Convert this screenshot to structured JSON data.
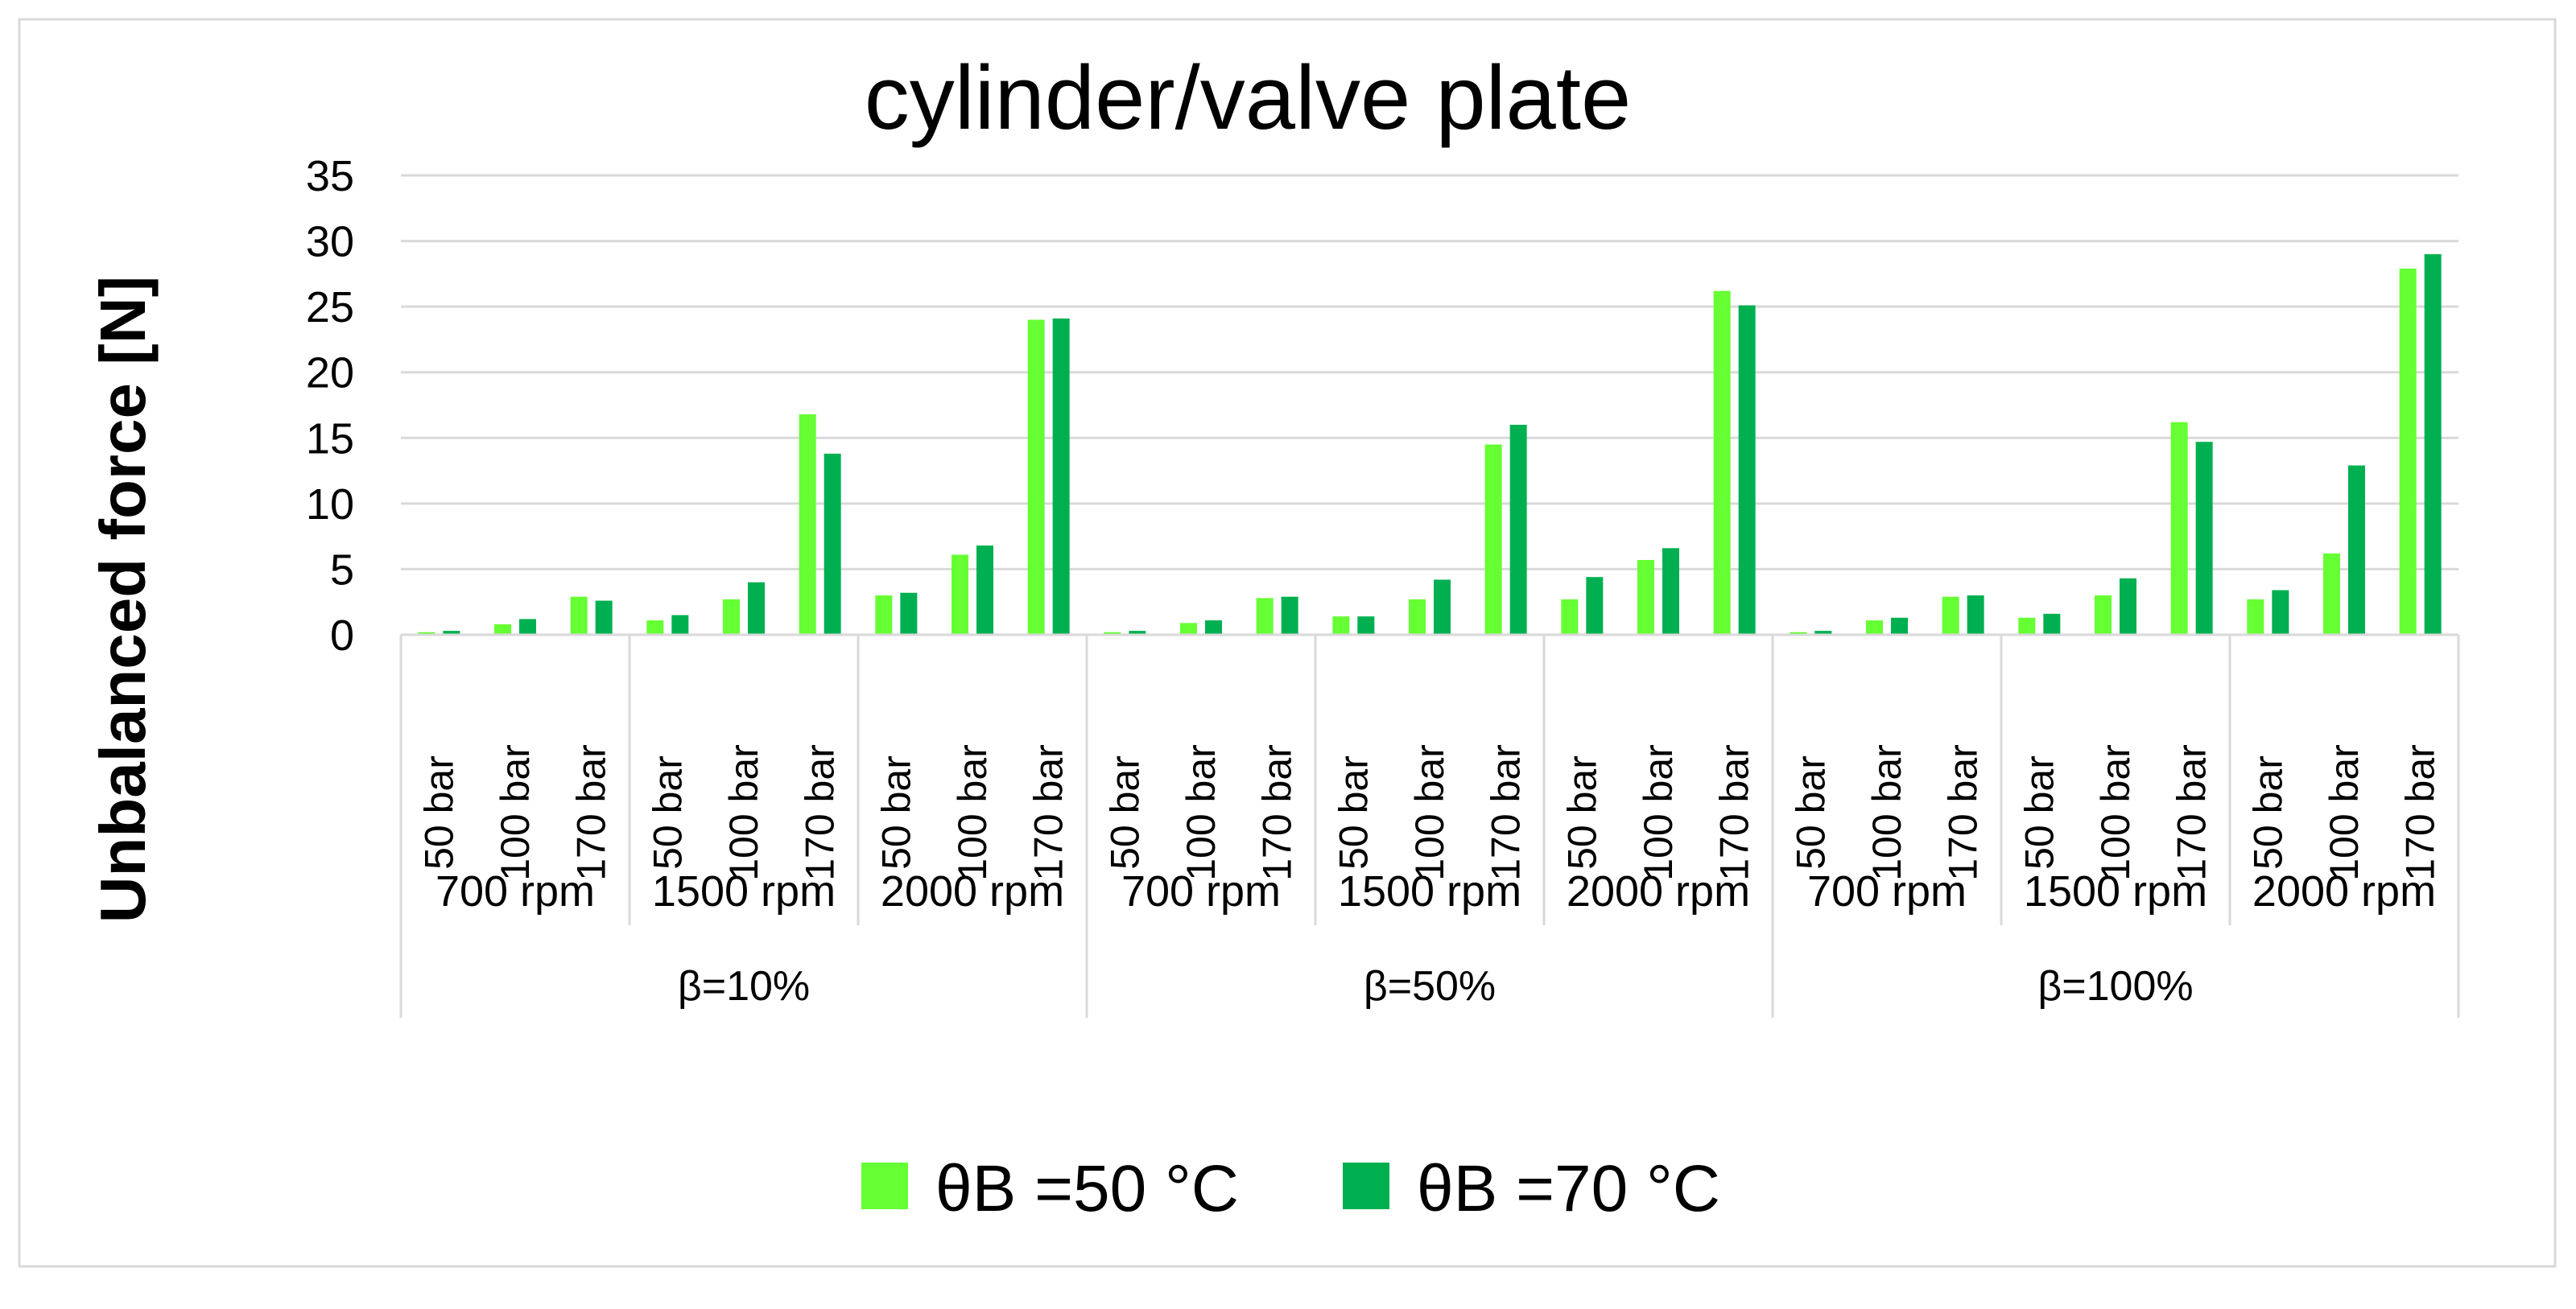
{
  "chart_data": {
    "type": "bar",
    "title": "cylinder/valve plate",
    "ylabel": "Unbalanced force [N]",
    "xlabel": "",
    "ylim": [
      0,
      35
    ],
    "yticks": [
      "0",
      "5",
      "10",
      "15",
      "20",
      "25",
      "30",
      "35"
    ],
    "grid": true,
    "legend_position": "bottom",
    "categories": [
      {
        "pressure": "50 bar",
        "speed": "700 rpm",
        "beta": "β=10%"
      },
      {
        "pressure": "100 bar",
        "speed": "700 rpm",
        "beta": "β=10%"
      },
      {
        "pressure": "170 bar",
        "speed": "700 rpm",
        "beta": "β=10%"
      },
      {
        "pressure": "50 bar",
        "speed": "1500 rpm",
        "beta": "β=10%"
      },
      {
        "pressure": "100 bar",
        "speed": "1500 rpm",
        "beta": "β=10%"
      },
      {
        "pressure": "170 bar",
        "speed": "1500 rpm",
        "beta": "β=10%"
      },
      {
        "pressure": "50 bar",
        "speed": "2000 rpm",
        "beta": "β=10%"
      },
      {
        "pressure": "100 bar",
        "speed": "2000 rpm",
        "beta": "β=10%"
      },
      {
        "pressure": "170 bar",
        "speed": "2000 rpm",
        "beta": "β=10%"
      },
      {
        "pressure": "50 bar",
        "speed": "700 rpm",
        "beta": "β=50%"
      },
      {
        "pressure": "100 bar",
        "speed": "700 rpm",
        "beta": "β=50%"
      },
      {
        "pressure": "170 bar",
        "speed": "700 rpm",
        "beta": "β=50%"
      },
      {
        "pressure": "50 bar",
        "speed": "1500 rpm",
        "beta": "β=50%"
      },
      {
        "pressure": "100 bar",
        "speed": "1500 rpm",
        "beta": "β=50%"
      },
      {
        "pressure": "170 bar",
        "speed": "1500 rpm",
        "beta": "β=50%"
      },
      {
        "pressure": "50 bar",
        "speed": "2000 rpm",
        "beta": "β=50%"
      },
      {
        "pressure": "100 bar",
        "speed": "2000 rpm",
        "beta": "β=50%"
      },
      {
        "pressure": "170 bar",
        "speed": "2000 rpm",
        "beta": "β=50%"
      },
      {
        "pressure": "50 bar",
        "speed": "700 rpm",
        "beta": "β=100%"
      },
      {
        "pressure": "100 bar",
        "speed": "700 rpm",
        "beta": "β=100%"
      },
      {
        "pressure": "170 bar",
        "speed": "700 rpm",
        "beta": "β=100%"
      },
      {
        "pressure": "50 bar",
        "speed": "1500 rpm",
        "beta": "β=100%"
      },
      {
        "pressure": "100 bar",
        "speed": "1500 rpm",
        "beta": "β=100%"
      },
      {
        "pressure": "170 bar",
        "speed": "1500 rpm",
        "beta": "β=100%"
      },
      {
        "pressure": "50 bar",
        "speed": "2000 rpm",
        "beta": "β=100%"
      },
      {
        "pressure": "100 bar",
        "speed": "2000 rpm",
        "beta": "β=100%"
      },
      {
        "pressure": "170 bar",
        "speed": "2000 rpm",
        "beta": "β=100%"
      }
    ],
    "series": [
      {
        "name": "θB =50 °C",
        "color": "#66ff33",
        "values": [
          0.2,
          0.8,
          2.9,
          1.1,
          2.7,
          16.8,
          3.0,
          6.1,
          24.0,
          0.2,
          0.9,
          2.8,
          1.4,
          2.7,
          14.5,
          2.7,
          5.7,
          26.2,
          0.2,
          1.1,
          2.9,
          1.3,
          3.0,
          16.2,
          2.7,
          6.2,
          27.9
        ]
      },
      {
        "name": "θB =70 °C",
        "color": "#00b050",
        "values": [
          0.3,
          1.2,
          2.6,
          1.5,
          4.0,
          13.8,
          3.2,
          6.8,
          24.1,
          0.3,
          1.1,
          2.9,
          1.4,
          4.2,
          16.0,
          4.4,
          6.6,
          25.1,
          0.3,
          1.3,
          3.0,
          1.6,
          4.3,
          14.7,
          3.4,
          12.9,
          29.0
        ]
      }
    ]
  }
}
